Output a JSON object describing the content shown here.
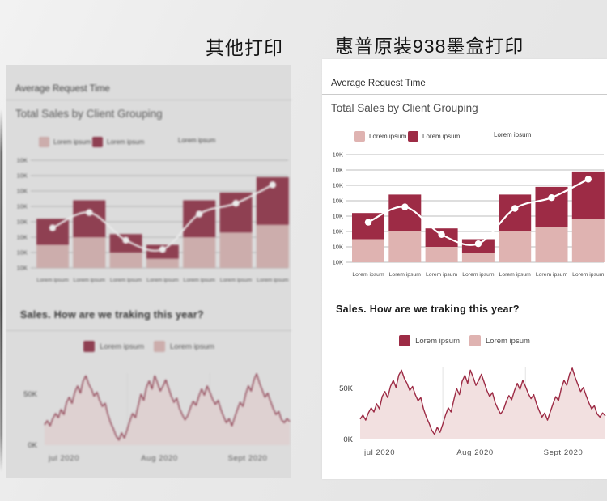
{
  "header": {
    "left_label": "其他打印",
    "right_label": "惠普原装938墨盒打印"
  },
  "panel": {
    "title": "Average Request Time",
    "bar_chart": {
      "subtitle": "Total Sales by Client Grouping",
      "legend": [
        {
          "label": "Lorem ipsum",
          "swatch": "#DFB3B1"
        },
        {
          "label": "Lorem ipsum",
          "swatch": "#9D2B45"
        },
        {
          "label": "Lorem ipsum",
          "swatch": ""
        }
      ]
    },
    "area_chart": {
      "heading": "Sales. How are we traking this year?",
      "legend": [
        {
          "label": "Lorem ipsum",
          "swatch": "#9D2B45"
        },
        {
          "label": "Lorem ipsum",
          "swatch": "#DFB3B1"
        }
      ]
    }
  },
  "colors": {
    "dark_red": "#9D2B45",
    "light_pink": "#DFB3B1",
    "area_fill": "#F2E0E0",
    "panel_faded_bg": "#DCDCDC",
    "panel_sharp_bg": "#FFFFFF"
  },
  "chart_data": [
    {
      "id": "total-sales-by-client-grouping",
      "type": "bar",
      "variant": "stacked-with-line-overlay",
      "title": "Total Sales by Client Grouping",
      "categories": [
        "Lorem ipsum",
        "Lorem ipsum",
        "Lorem ipsum",
        "Lorem ipsum",
        "Lorem ipsum",
        "Lorem ipsum",
        "Lorem ipsum"
      ],
      "series": [
        {
          "name": "Lorem ipsum",
          "color": "#DFB3B1",
          "values_k": [
            15,
            20,
            10,
            6,
            20,
            23,
            28
          ]
        },
        {
          "name": "Lorem ipsum",
          "color": "#9D2B45",
          "values_k": [
            17,
            24,
            12,
            9,
            24,
            26,
            31
          ]
        }
      ],
      "line_overlay": {
        "color": "#FFFFFF",
        "values_k": [
          26,
          36,
          18,
          12,
          35,
          42,
          54
        ]
      },
      "y_axis": {
        "tick_labels": [
          "10K",
          "10K",
          "10K",
          "10K",
          "10K",
          "10K",
          "10K",
          "10K"
        ],
        "k_per_grid_step": 10,
        "grid": true
      },
      "legend_position": "top-left"
    },
    {
      "id": "sales-tracking-area",
      "type": "area",
      "title": "Sales. How are we traking this year?",
      "x_labels": [
        "jul 2020",
        "Aug 2020",
        "Sept 2020"
      ],
      "y_tick_labels": [
        "50K",
        "0K"
      ],
      "ylim_k": [
        0,
        70
      ],
      "stroke": "#9D2B45",
      "fill": "#F2E0E0",
      "grid": "faint-vertical-month-lines",
      "legend_position": "top-center",
      "values_k": [
        20,
        24,
        19,
        26,
        31,
        27,
        35,
        30,
        42,
        47,
        41,
        52,
        58,
        51,
        63,
        68,
        60,
        55,
        48,
        52,
        44,
        38,
        41,
        30,
        22,
        16,
        9,
        5,
        12,
        7,
        15,
        24,
        31,
        27,
        39,
        50,
        44,
        57,
        63,
        55,
        68,
        61,
        53,
        58,
        64,
        56,
        48,
        42,
        46,
        36,
        30,
        25,
        29,
        37,
        43,
        39,
        48,
        55,
        49,
        58,
        52,
        45,
        40,
        44,
        35,
        28,
        22,
        26,
        19,
        27,
        35,
        42,
        38,
        50,
        58,
        53,
        64,
        70,
        61,
        54,
        47,
        51,
        43,
        36,
        30,
        33,
        25,
        22,
        26,
        23
      ]
    }
  ]
}
